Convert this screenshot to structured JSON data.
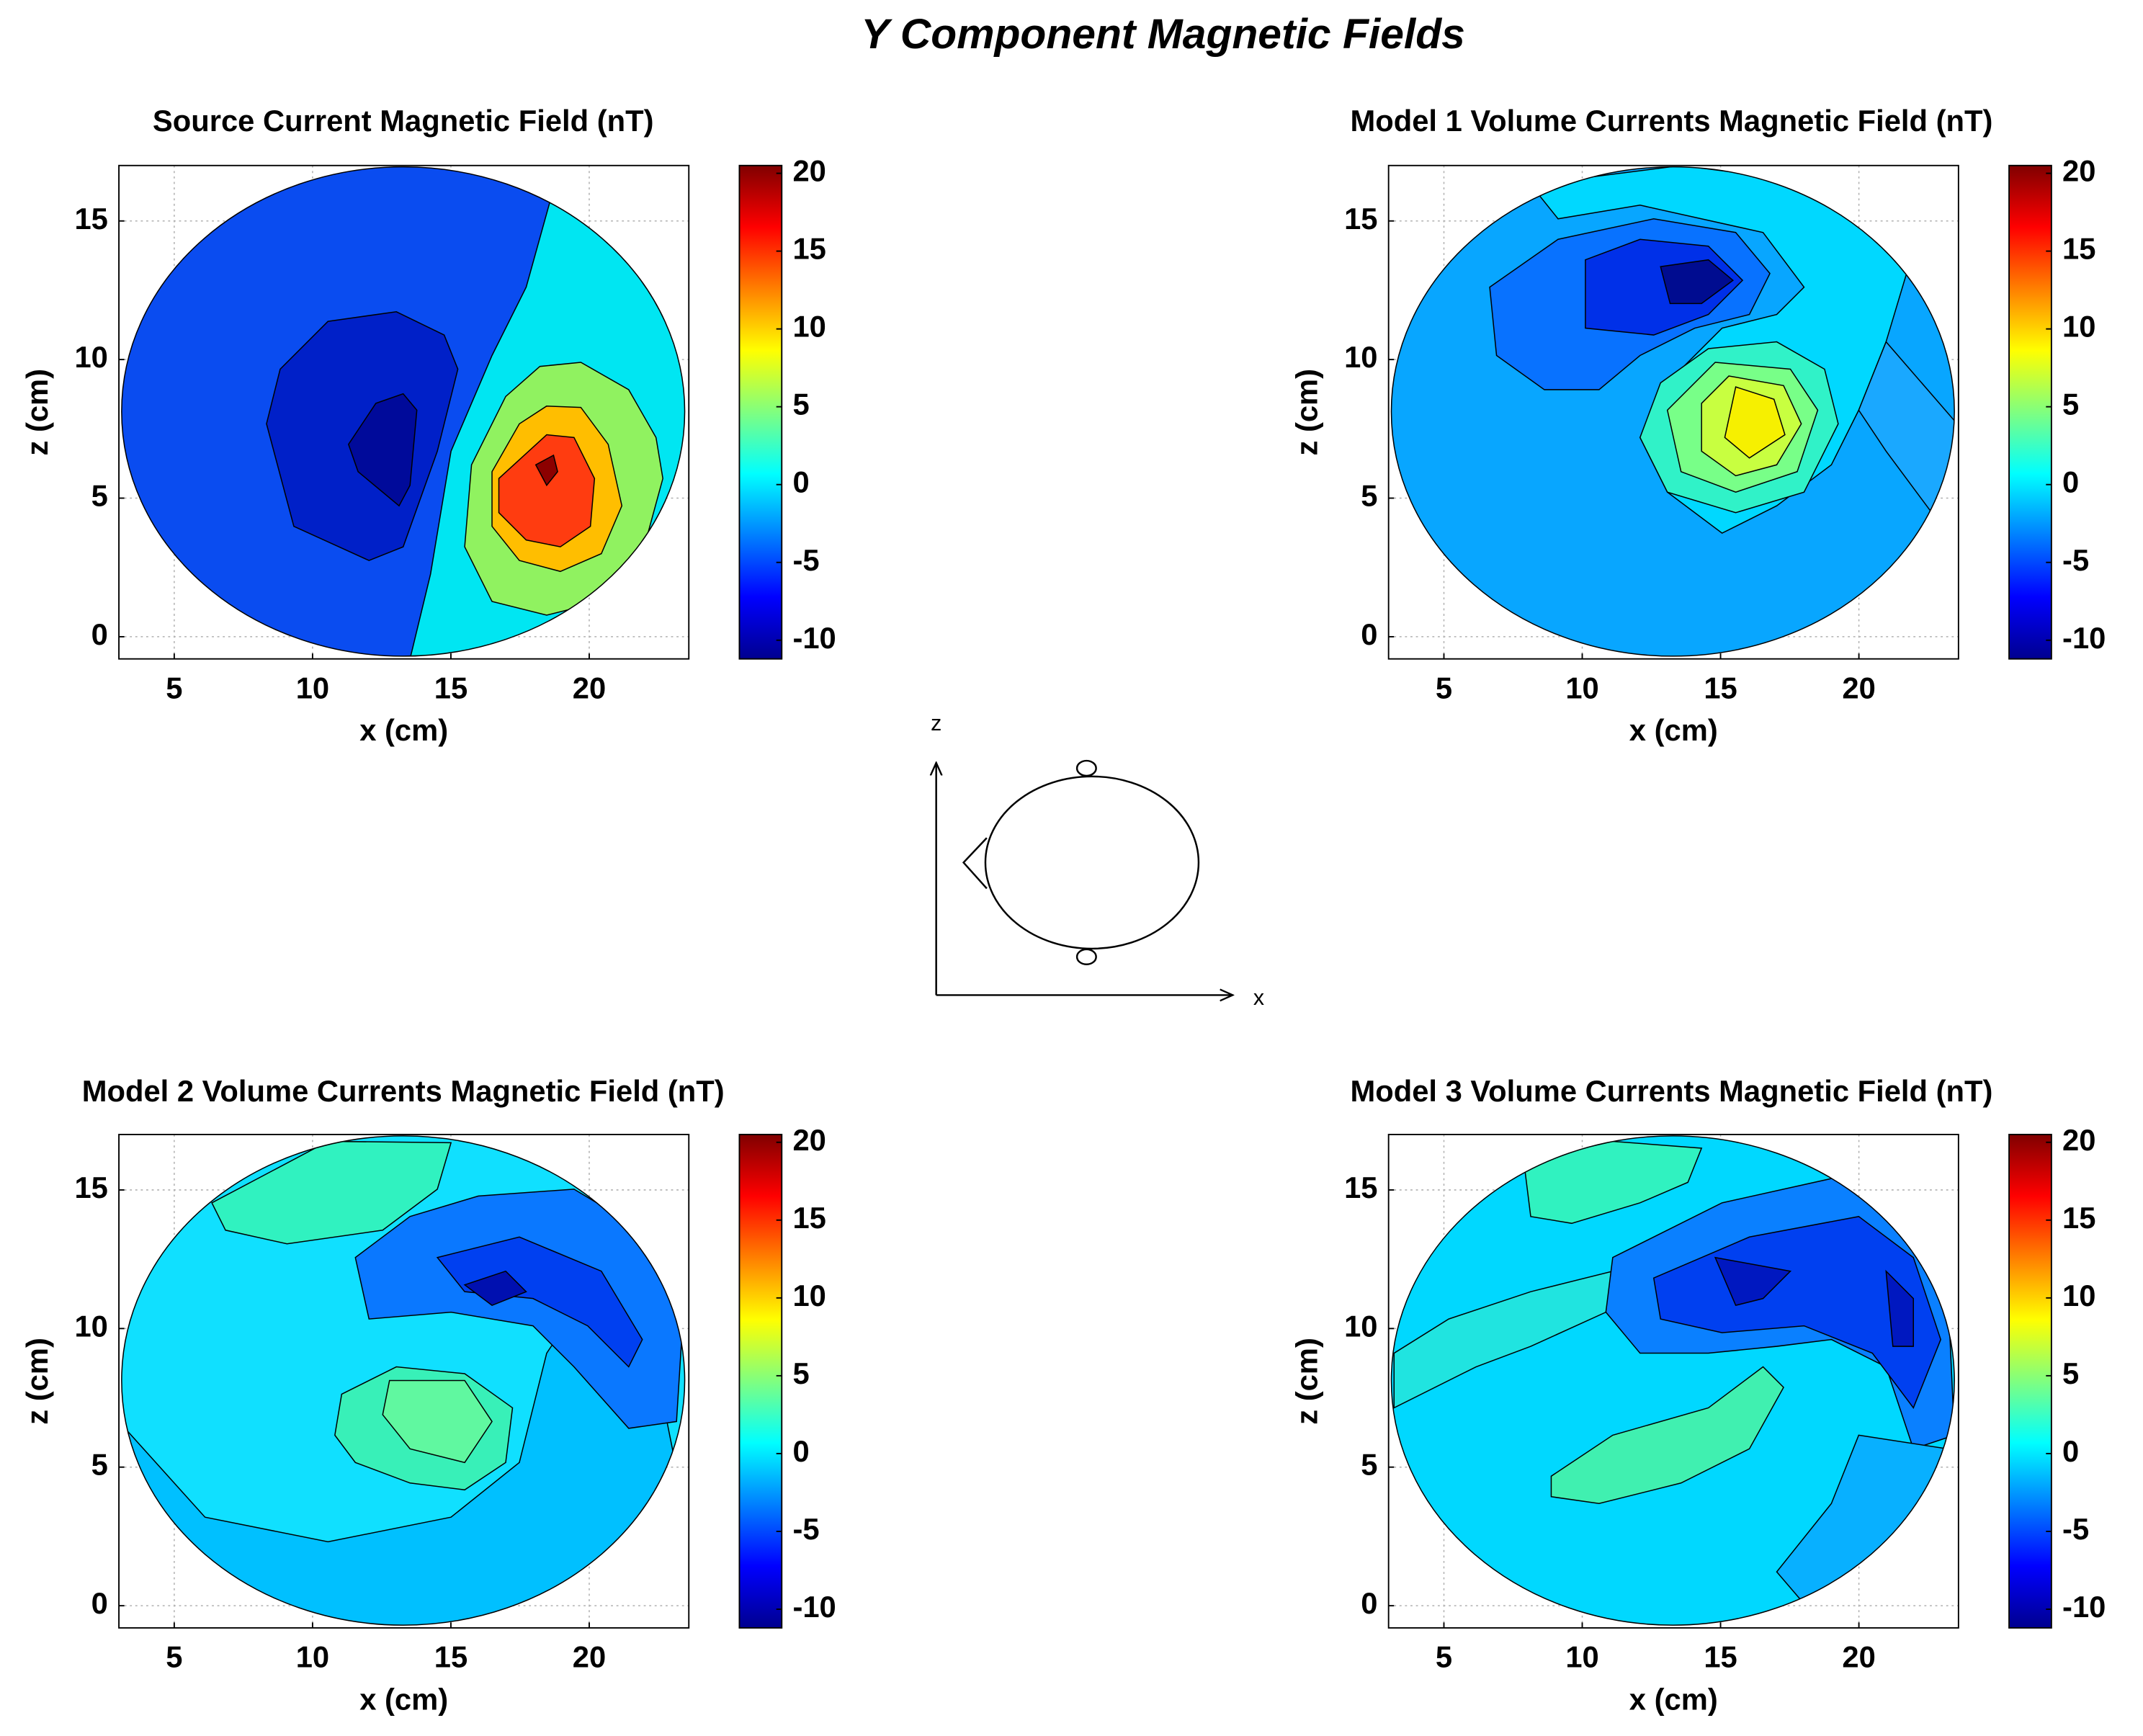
{
  "title": "Y Component Magnetic Fields",
  "diagram": {
    "x_label": "x",
    "z_label": "z"
  },
  "chart_data": [
    {
      "type": "contour",
      "title": "Source Current Magnetic Field (nT)",
      "xlabel": "x (cm)",
      "ylabel": "z (cm)",
      "xlim": [
        3,
        23.6
      ],
      "ylim": [
        -0.8,
        17
      ],
      "xticks": [
        5,
        10,
        15,
        20
      ],
      "yticks": [
        0,
        5,
        10,
        15
      ],
      "grid": true,
      "colorbar": {
        "clim": [
          -11.2,
          20.5
        ],
        "ticks": [
          -10,
          -5,
          0,
          5,
          10,
          15,
          20
        ]
      }
    },
    {
      "type": "contour",
      "title": "Model 1 Volume Currents Magnetic Field (nT)",
      "xlabel": "x (cm)",
      "ylabel": "z (cm)",
      "xlim": [
        3,
        23.6
      ],
      "ylim": [
        -0.8,
        17
      ],
      "xticks": [
        5,
        10,
        15,
        20
      ],
      "yticks": [
        0,
        5,
        10,
        15
      ],
      "grid": true,
      "colorbar": {
        "clim": [
          -11.2,
          20.5
        ],
        "ticks": [
          -10,
          -5,
          0,
          5,
          10,
          15,
          20
        ]
      }
    },
    {
      "type": "contour",
      "title": "Model 2 Volume Currents Magnetic Field (nT)",
      "xlabel": "x (cm)",
      "ylabel": "z (cm)",
      "xlim": [
        3,
        23.6
      ],
      "ylim": [
        -0.8,
        17
      ],
      "xticks": [
        5,
        10,
        15,
        20
      ],
      "yticks": [
        0,
        5,
        10,
        15
      ],
      "grid": true,
      "colorbar": {
        "clim": [
          -11.2,
          20.5
        ],
        "ticks": [
          -10,
          -5,
          0,
          5,
          10,
          15,
          20
        ]
      }
    },
    {
      "type": "contour",
      "title": "Model 3 Volume Currents Magnetic Field (nT)",
      "xlabel": "x (cm)",
      "ylabel": "z (cm)",
      "xlim": [
        3,
        23.6
      ],
      "ylim": [
        -0.8,
        17
      ],
      "xticks": [
        5,
        10,
        15,
        20
      ],
      "yticks": [
        0,
        5,
        10,
        15
      ],
      "grid": true,
      "colorbar": {
        "clim": [
          -11.2,
          20.5
        ],
        "ticks": [
          -10,
          -5,
          0,
          5,
          10,
          15,
          20
        ]
      }
    }
  ]
}
